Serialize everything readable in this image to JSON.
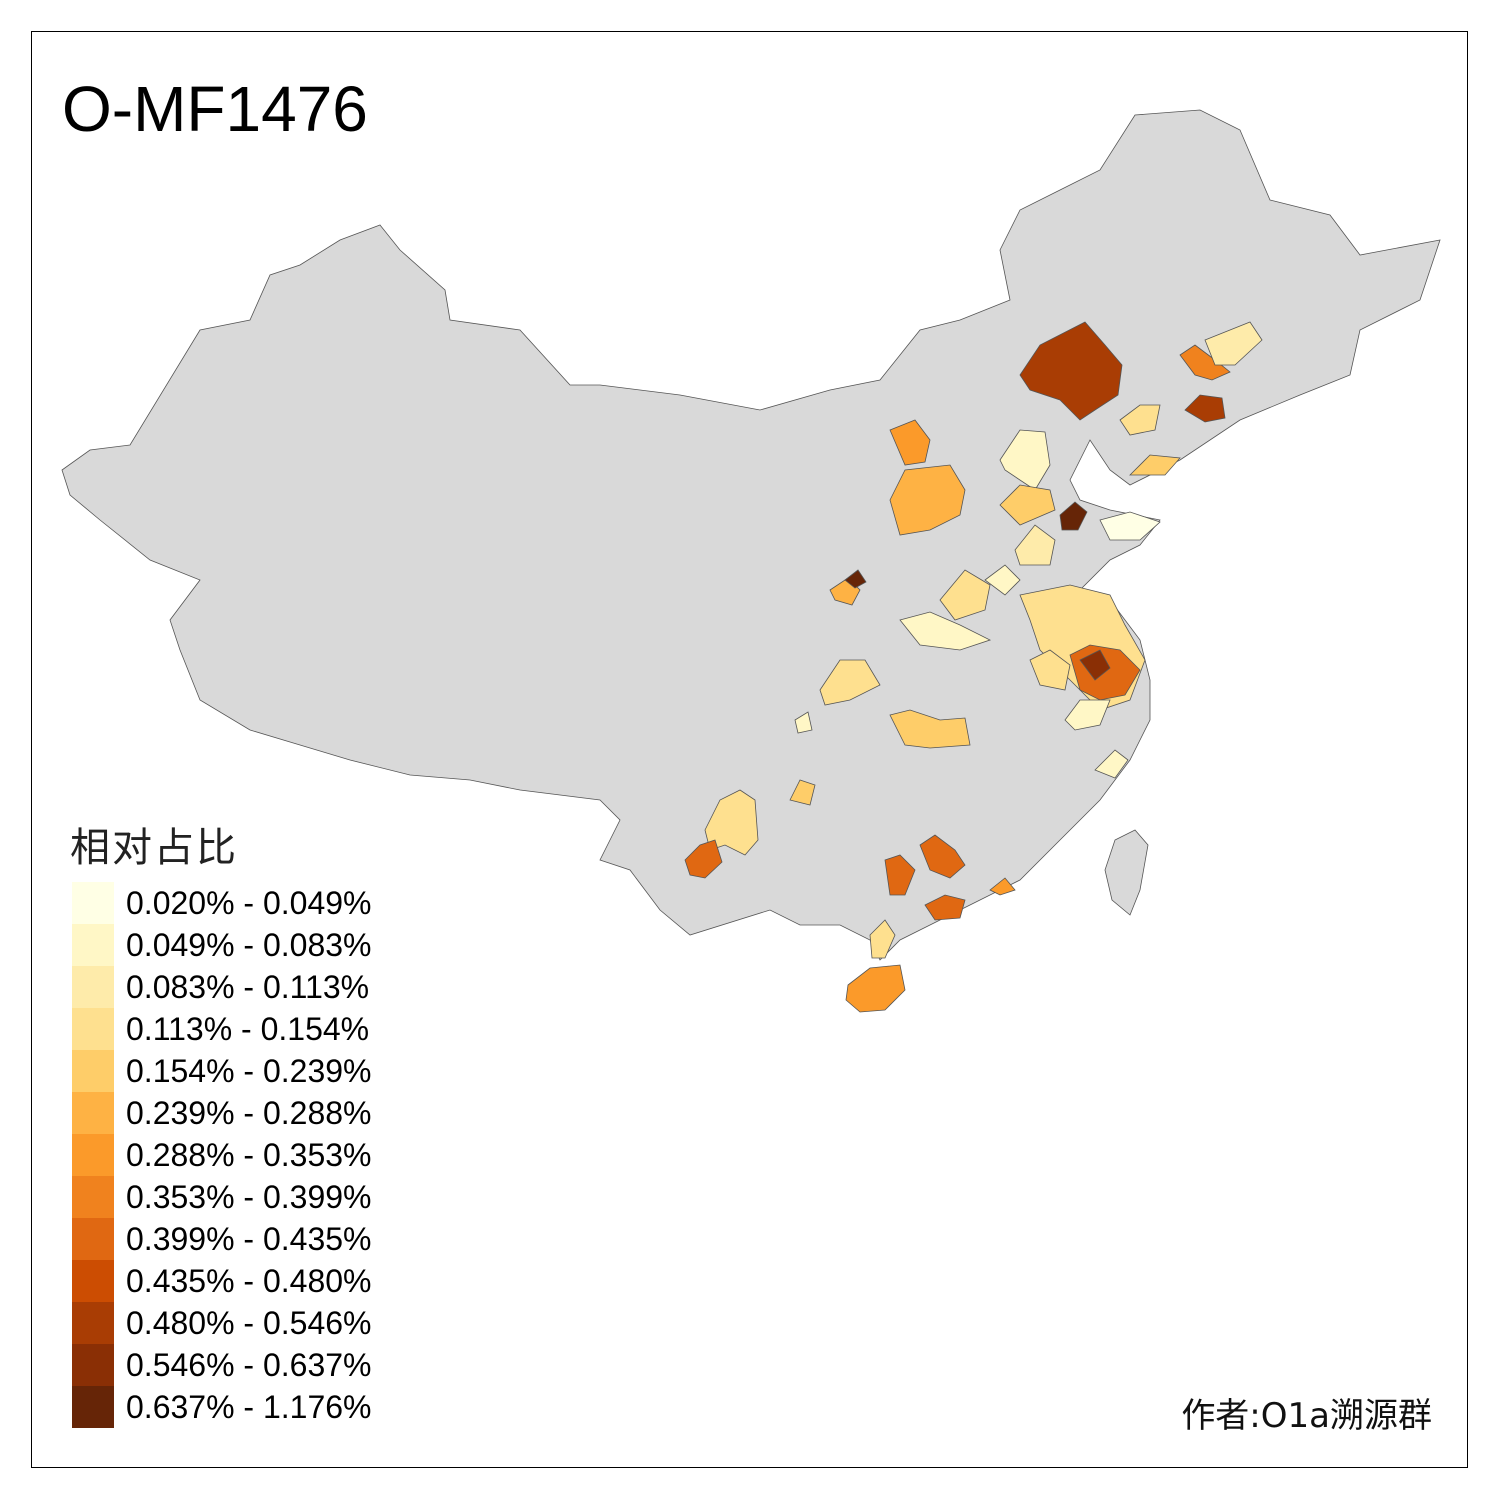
{
  "title": "O-MF1476",
  "legend": {
    "title": "相对占比",
    "items": [
      {
        "label": "0.020% - 0.049%",
        "color": "#FFFFE5"
      },
      {
        "label": "0.049% - 0.083%",
        "color": "#FFF7C6"
      },
      {
        "label": "0.083% - 0.113%",
        "color": "#FEEBAA"
      },
      {
        "label": "0.113% - 0.154%",
        "color": "#FEE08F"
      },
      {
        "label": "0.154% - 0.239%",
        "color": "#FECD69"
      },
      {
        "label": "0.239% - 0.288%",
        "color": "#FEB244"
      },
      {
        "label": "0.288% - 0.353%",
        "color": "#FB9A2A"
      },
      {
        "label": "0.353% - 0.399%",
        "color": "#F0821E"
      },
      {
        "label": "0.399% - 0.435%",
        "color": "#E06812"
      },
      {
        "label": "0.435% - 0.480%",
        "color": "#CC4D02"
      },
      {
        "label": "0.480% - 0.546%",
        "color": "#A93D04"
      },
      {
        "label": "0.546% - 0.637%",
        "color": "#8A2F05"
      },
      {
        "label": "0.637% - 1.176%",
        "color": "#662507"
      }
    ]
  },
  "base_color": "#D9D9D9",
  "author": "作者:O1a溯源群"
}
